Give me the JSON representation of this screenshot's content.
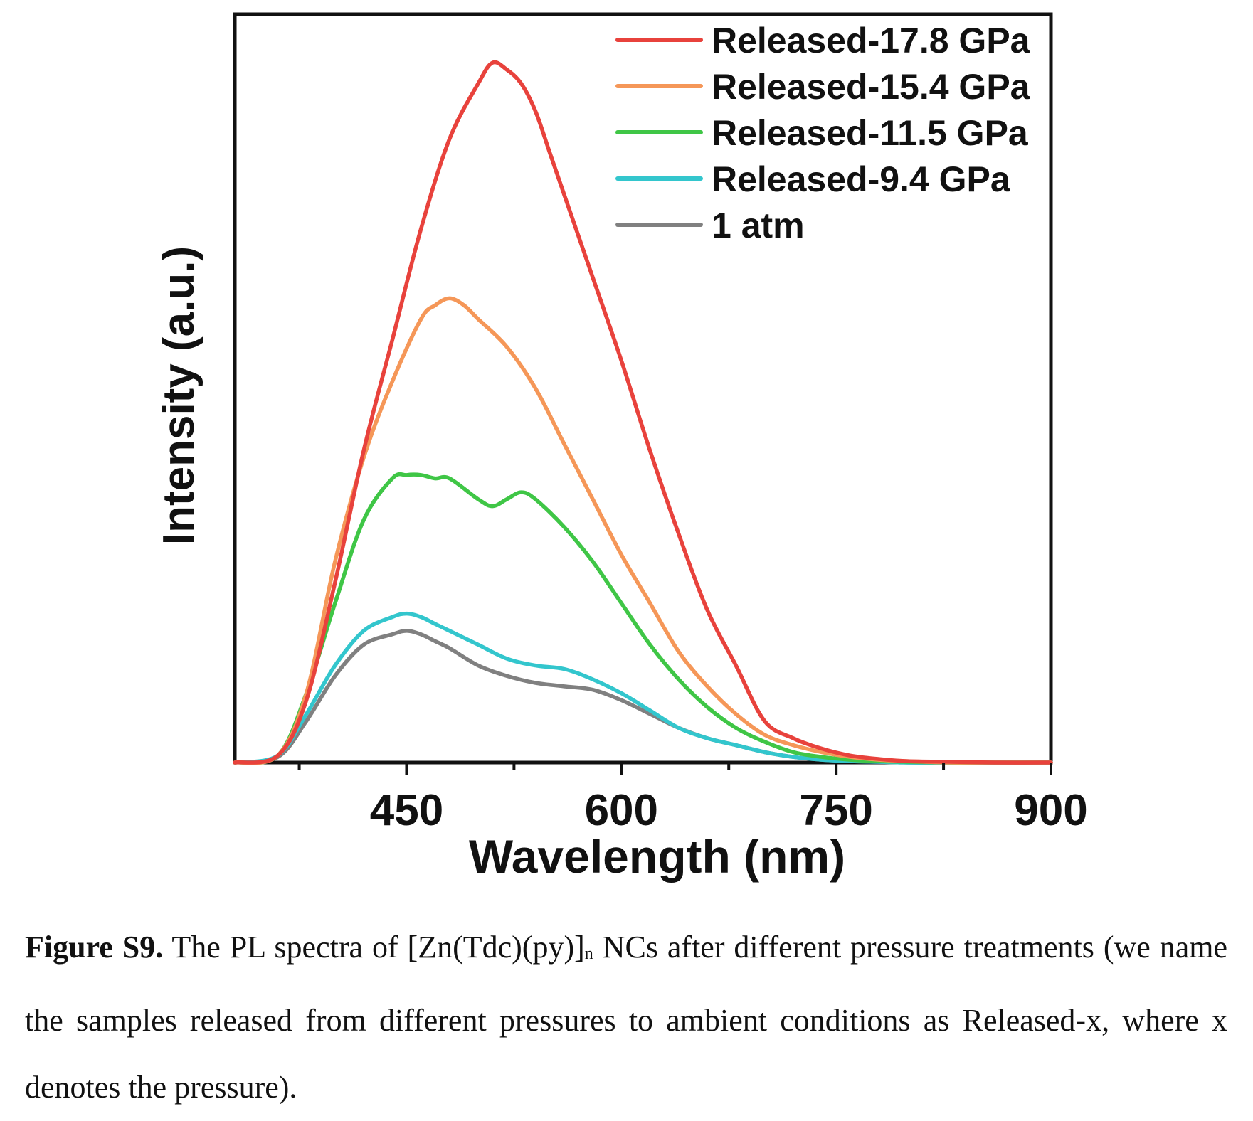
{
  "chart_data": {
    "type": "line",
    "xlabel": "Wavelength (nm)",
    "ylabel": "Intensity (a.u.)",
    "xlim": [
      330,
      900
    ],
    "ylim": [
      0,
      1.08
    ],
    "xticks": [
      450,
      600,
      750,
      900
    ],
    "yticks": [],
    "grid": false,
    "legend_position": "top-right",
    "series": [
      {
        "name": "Released-17.8 GPa",
        "color": "#e8423c",
        "x": [
          330,
          360,
          380,
          400,
          420,
          440,
          460,
          480,
          500,
          510,
          520,
          530,
          540,
          550,
          560,
          580,
          600,
          620,
          640,
          660,
          680,
          700,
          720,
          740,
          760,
          780,
          800,
          830,
          860,
          900
        ],
        "y": [
          0.0,
          0.01,
          0.09,
          0.26,
          0.45,
          0.61,
          0.77,
          0.9,
          0.98,
          1.01,
          1.0,
          0.98,
          0.94,
          0.88,
          0.82,
          0.7,
          0.58,
          0.45,
          0.33,
          0.22,
          0.14,
          0.06,
          0.035,
          0.02,
          0.01,
          0.005,
          0.002,
          0.001,
          0.0,
          0.0
        ]
      },
      {
        "name": "Released-15.4 GPa",
        "color": "#f59758",
        "x": [
          330,
          360,
          380,
          400,
          420,
          440,
          460,
          470,
          480,
          490,
          500,
          520,
          540,
          560,
          580,
          600,
          620,
          640,
          660,
          680,
          700,
          720,
          740,
          760,
          780,
          800,
          830,
          860,
          900
        ],
        "y": [
          0.0,
          0.01,
          0.1,
          0.29,
          0.44,
          0.55,
          0.64,
          0.66,
          0.67,
          0.66,
          0.64,
          0.6,
          0.54,
          0.46,
          0.38,
          0.3,
          0.23,
          0.16,
          0.11,
          0.07,
          0.04,
          0.025,
          0.015,
          0.008,
          0.004,
          0.002,
          0.0,
          0.0,
          0.0
        ]
      },
      {
        "name": "Released-11.5 GPa",
        "color": "#3fc646",
        "x": [
          330,
          360,
          380,
          400,
          420,
          440,
          450,
          460,
          470,
          480,
          500,
          510,
          520,
          530,
          540,
          560,
          580,
          600,
          620,
          640,
          660,
          680,
          700,
          720,
          740,
          760,
          780,
          800,
          830,
          860,
          900
        ],
        "y": [
          0.0,
          0.01,
          0.1,
          0.23,
          0.35,
          0.41,
          0.415,
          0.415,
          0.41,
          0.41,
          0.38,
          0.37,
          0.38,
          0.39,
          0.38,
          0.34,
          0.29,
          0.23,
          0.17,
          0.12,
          0.08,
          0.05,
          0.03,
          0.015,
          0.008,
          0.004,
          0.002,
          0.001,
          0.0,
          0.0,
          0.0
        ]
      },
      {
        "name": "Released-9.4 GPa",
        "color": "#33c6cd",
        "x": [
          330,
          360,
          380,
          400,
          420,
          440,
          450,
          460,
          470,
          480,
          500,
          520,
          540,
          560,
          580,
          600,
          620,
          640,
          660,
          680,
          700,
          720,
          740,
          760,
          780,
          800,
          830,
          860,
          900
        ],
        "y": [
          0.0,
          0.01,
          0.07,
          0.14,
          0.19,
          0.21,
          0.215,
          0.21,
          0.2,
          0.19,
          0.17,
          0.15,
          0.14,
          0.135,
          0.12,
          0.1,
          0.075,
          0.05,
          0.035,
          0.025,
          0.015,
          0.008,
          0.004,
          0.002,
          0.001,
          0.0,
          0.0,
          0.0,
          0.0
        ]
      },
      {
        "name": "1 atm",
        "color": "#808080",
        "x": [
          330,
          360,
          380,
          400,
          420,
          440,
          450,
          460,
          470,
          480,
          500,
          520,
          540,
          560,
          580,
          600,
          620,
          640,
          660,
          680,
          700,
          720,
          740,
          760,
          780,
          800,
          830,
          860,
          900
        ],
        "y": [
          0.0,
          0.008,
          0.06,
          0.125,
          0.17,
          0.185,
          0.19,
          0.185,
          0.175,
          0.165,
          0.14,
          0.125,
          0.115,
          0.11,
          0.105,
          0.09,
          0.07,
          0.05,
          0.035,
          0.025,
          0.015,
          0.008,
          0.004,
          0.002,
          0.001,
          0.0,
          0.0,
          0.0,
          0.0
        ]
      }
    ]
  },
  "caption": {
    "lead": "Figure S9.",
    "text_1": " The PL spectra of [Zn(Tdc)(py)]",
    "subscript": "n",
    "text_2": " NCs after different pressure treatments (we name the samples released from different pressures to ambient conditions as Released-x, where x denotes the pressure)."
  }
}
